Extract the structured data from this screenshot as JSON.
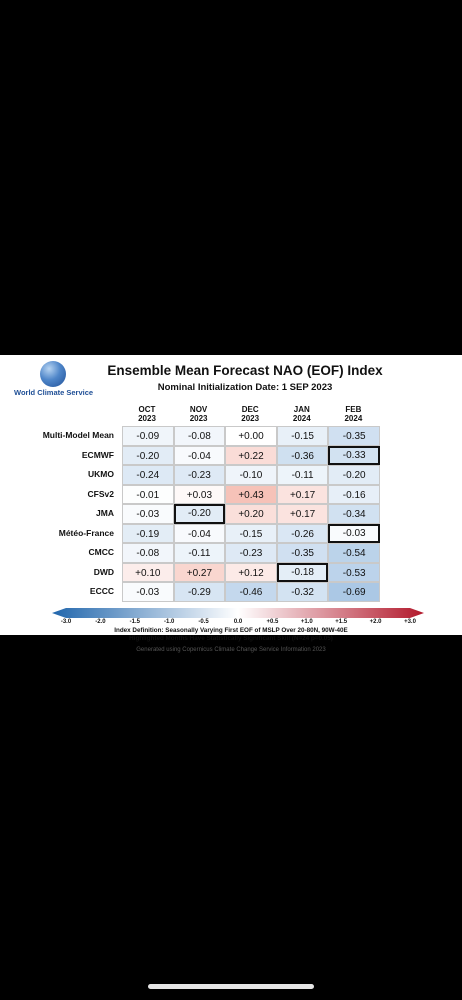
{
  "logo": {
    "text": "World Climate Service"
  },
  "chart_data": {
    "type": "table",
    "title": "Ensemble Mean Forecast NAO (EOF) Index",
    "subtitle": "Nominal Initialization Date: 1 SEP 2023",
    "columns": [
      {
        "month": "OCT",
        "year": "2023"
      },
      {
        "month": "NOV",
        "year": "2023"
      },
      {
        "month": "DEC",
        "year": "2023"
      },
      {
        "month": "JAN",
        "year": "2024"
      },
      {
        "month": "FEB",
        "year": "2024"
      }
    ],
    "rows": [
      {
        "model": "Multi-Model Mean",
        "values": [
          "-0.09",
          "-0.08",
          "+0.00",
          "-0.15",
          "-0.35"
        ],
        "highlighted": [
          false,
          false,
          false,
          false,
          false
        ]
      },
      {
        "model": "ECMWF",
        "values": [
          "-0.20",
          "-0.04",
          "+0.22",
          "-0.36",
          "-0.33"
        ],
        "highlighted": [
          false,
          false,
          false,
          false,
          true
        ]
      },
      {
        "model": "UKMO",
        "values": [
          "-0.24",
          "-0.23",
          "-0.10",
          "-0.11",
          "-0.20"
        ],
        "highlighted": [
          false,
          false,
          false,
          false,
          false
        ]
      },
      {
        "model": "CFSv2",
        "values": [
          "-0.01",
          "+0.03",
          "+0.43",
          "+0.17",
          "-0.16"
        ],
        "highlighted": [
          false,
          false,
          false,
          false,
          false
        ]
      },
      {
        "model": "JMA",
        "values": [
          "-0.03",
          "-0.20",
          "+0.20",
          "+0.17",
          "-0.34"
        ],
        "highlighted": [
          false,
          true,
          false,
          false,
          false
        ]
      },
      {
        "model": "Météo-France",
        "values": [
          "-0.19",
          "-0.04",
          "-0.15",
          "-0.26",
          "-0.03"
        ],
        "highlighted": [
          false,
          false,
          false,
          false,
          true
        ]
      },
      {
        "model": "CMCC",
        "values": [
          "-0.08",
          "-0.11",
          "-0.23",
          "-0.35",
          "-0.54"
        ],
        "highlighted": [
          false,
          false,
          false,
          false,
          false
        ]
      },
      {
        "model": "DWD",
        "values": [
          "+0.10",
          "+0.27",
          "+0.12",
          "-0.18",
          "-0.53"
        ],
        "highlighted": [
          false,
          false,
          false,
          true,
          false
        ]
      },
      {
        "model": "ECCC",
        "values": [
          "-0.03",
          "-0.29",
          "-0.46",
          "-0.32",
          "-0.69"
        ],
        "highlighted": [
          false,
          false,
          false,
          false,
          false
        ]
      }
    ],
    "colorbar": {
      "range": [
        -3.0,
        3.0
      ],
      "ticks": [
        "-3.0",
        "-2.0",
        "-1.5",
        "-1.0",
        "-0.5",
        "0.0",
        "+0.5",
        "+1.0",
        "+1.5",
        "+2.0",
        "+3.0"
      ],
      "negative_color": "#2166ac",
      "neutral_color": "#ffffff",
      "positive_color": "#b2182b"
    },
    "notes": [
      "Index Definition: Seasonally Varying First EOF of MSLP Over 20-80N, 90W-40E",
      "Highlighted Months Have Statistically Significant Skill (N=24 p=0.05)"
    ],
    "footer": "Generated using Copernicus Climate Change Service Information 2023"
  }
}
